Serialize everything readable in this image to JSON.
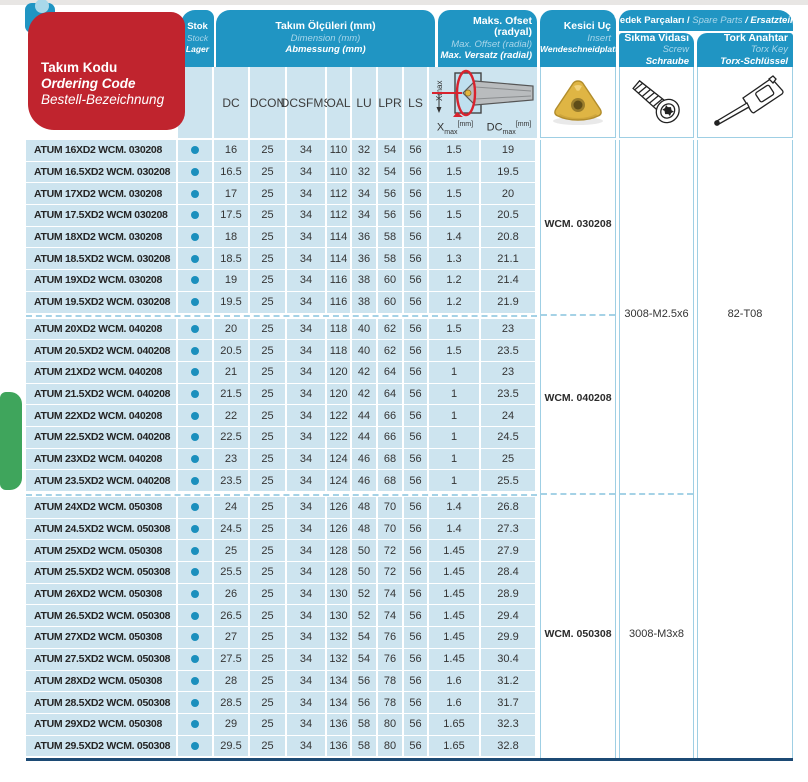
{
  "header": {
    "ordering_code": {
      "tr": "Takım Kodu",
      "en": "Ordering Code",
      "de": "Bestell-Bezeichnung"
    },
    "stock": {
      "tr": "Stok",
      "en": "Stock",
      "de": "Lager"
    },
    "dimensions": {
      "tr": "Takım Ölçüleri (mm)",
      "en": "Dimension (mm)",
      "de": "Abmessung (mm)"
    },
    "max_offset": {
      "tr": "Maks. Ofset (radyal)",
      "en": "Max. Offset (radial)",
      "de": "Max. Versatz (radial)"
    },
    "insert": {
      "tr": "Kesici Uç",
      "en": "Insert",
      "de": "Wendeschneidplatte"
    },
    "spare_parts": {
      "tr": "Yedek Parçaları /",
      "en": "Spare Parts",
      "de": "/ Ersatzteile"
    },
    "screw": {
      "tr": "Sıkma Vidası",
      "en": "Screw",
      "de": "Schraube"
    },
    "torx_key": {
      "tr": "Tork Anahtar",
      "en": "Torx Key",
      "de": "Torx-Schlüssel"
    },
    "dim_columns": [
      "DC",
      "DCON",
      "DCSFMS",
      "OAL",
      "LU",
      "LPR",
      "LS"
    ],
    "offset_x": {
      "base": "X",
      "sub": "max",
      "unit": "[mm]"
    },
    "offset_dc": {
      "base": "DC",
      "sub": "max",
      "unit": "[mm]"
    },
    "diagram_label": "Xmax"
  },
  "groups": [
    {
      "insert": "WCM. 030208"
    },
    {
      "insert": "WCM. 040208"
    },
    {
      "insert": "WCM. 050308"
    }
  ],
  "spares": {
    "screw_group12": "3008-M2.5x6",
    "screw_group3": "3008-M3x8",
    "torx_all": "82-T08"
  },
  "rows": [
    {
      "code": "ATUM 16XD2 WCM. 030208",
      "dc": "16",
      "dcon": "25",
      "dcsfms": "34",
      "oal": "110",
      "lu": "32",
      "lpr": "54",
      "ls": "56",
      "xmax": "1.5",
      "dcmax": "19"
    },
    {
      "code": "ATUM 16.5XD2 WCM. 030208",
      "dc": "16.5",
      "dcon": "25",
      "dcsfms": "34",
      "oal": "110",
      "lu": "32",
      "lpr": "54",
      "ls": "56",
      "xmax": "1.5",
      "dcmax": "19.5"
    },
    {
      "code": "ATUM 17XD2 WCM. 030208",
      "dc": "17",
      "dcon": "25",
      "dcsfms": "34",
      "oal": "112",
      "lu": "34",
      "lpr": "56",
      "ls": "56",
      "xmax": "1.5",
      "dcmax": "20"
    },
    {
      "code": "ATUM 17.5XD2 WCM 030208",
      "dc": "17.5",
      "dcon": "25",
      "dcsfms": "34",
      "oal": "112",
      "lu": "34",
      "lpr": "56",
      "ls": "56",
      "xmax": "1.5",
      "dcmax": "20.5"
    },
    {
      "code": "ATUM 18XD2 WCM. 030208",
      "dc": "18",
      "dcon": "25",
      "dcsfms": "34",
      "oal": "114",
      "lu": "36",
      "lpr": "58",
      "ls": "56",
      "xmax": "1.4",
      "dcmax": "20.8"
    },
    {
      "code": "ATUM 18.5XD2 WCM. 030208",
      "dc": "18.5",
      "dcon": "25",
      "dcsfms": "34",
      "oal": "114",
      "lu": "36",
      "lpr": "58",
      "ls": "56",
      "xmax": "1.3",
      "dcmax": "21.1"
    },
    {
      "code": "ATUM 19XD2 WCM. 030208",
      "dc": "19",
      "dcon": "25",
      "dcsfms": "34",
      "oal": "116",
      "lu": "38",
      "lpr": "60",
      "ls": "56",
      "xmax": "1.2",
      "dcmax": "21.4"
    },
    {
      "code": "ATUM 19.5XD2 WCM. 030208",
      "dc": "19.5",
      "dcon": "25",
      "dcsfms": "34",
      "oal": "116",
      "lu": "38",
      "lpr": "60",
      "ls": "56",
      "xmax": "1.2",
      "dcmax": "21.9"
    },
    {
      "code": "ATUM 20XD2 WCM. 040208",
      "dc": "20",
      "dcon": "25",
      "dcsfms": "34",
      "oal": "118",
      "lu": "40",
      "lpr": "62",
      "ls": "56",
      "xmax": "1.5",
      "dcmax": "23"
    },
    {
      "code": "ATUM 20.5XD2 WCM. 040208",
      "dc": "20.5",
      "dcon": "25",
      "dcsfms": "34",
      "oal": "118",
      "lu": "40",
      "lpr": "62",
      "ls": "56",
      "xmax": "1.5",
      "dcmax": "23.5"
    },
    {
      "code": "ATUM 21XD2 WCM. 040208",
      "dc": "21",
      "dcon": "25",
      "dcsfms": "34",
      "oal": "120",
      "lu": "42",
      "lpr": "64",
      "ls": "56",
      "xmax": "1",
      "dcmax": "23"
    },
    {
      "code": "ATUM 21.5XD2 WCM. 040208",
      "dc": "21.5",
      "dcon": "25",
      "dcsfms": "34",
      "oal": "120",
      "lu": "42",
      "lpr": "64",
      "ls": "56",
      "xmax": "1",
      "dcmax": "23.5"
    },
    {
      "code": "ATUM 22XD2 WCM. 040208",
      "dc": "22",
      "dcon": "25",
      "dcsfms": "34",
      "oal": "122",
      "lu": "44",
      "lpr": "66",
      "ls": "56",
      "xmax": "1",
      "dcmax": "24"
    },
    {
      "code": "ATUM 22.5XD2 WCM. 040208",
      "dc": "22.5",
      "dcon": "25",
      "dcsfms": "34",
      "oal": "122",
      "lu": "44",
      "lpr": "66",
      "ls": "56",
      "xmax": "1",
      "dcmax": "24.5"
    },
    {
      "code": "ATUM 23XD2 WCM. 040208",
      "dc": "23",
      "dcon": "25",
      "dcsfms": "34",
      "oal": "124",
      "lu": "46",
      "lpr": "68",
      "ls": "56",
      "xmax": "1",
      "dcmax": "25"
    },
    {
      "code": "ATUM 23.5XD2 WCM. 040208",
      "dc": "23.5",
      "dcon": "25",
      "dcsfms": "34",
      "oal": "124",
      "lu": "46",
      "lpr": "68",
      "ls": "56",
      "xmax": "1",
      "dcmax": "25.5"
    },
    {
      "code": "ATUM 24XD2 WCM. 050308",
      "dc": "24",
      "dcon": "25",
      "dcsfms": "34",
      "oal": "126",
      "lu": "48",
      "lpr": "70",
      "ls": "56",
      "xmax": "1.4",
      "dcmax": "26.8"
    },
    {
      "code": "ATUM 24.5XD2 WCM. 050308",
      "dc": "24.5",
      "dcon": "25",
      "dcsfms": "34",
      "oal": "126",
      "lu": "48",
      "lpr": "70",
      "ls": "56",
      "xmax": "1.4",
      "dcmax": "27.3"
    },
    {
      "code": "ATUM 25XD2 WCM. 050308",
      "dc": "25",
      "dcon": "25",
      "dcsfms": "34",
      "oal": "128",
      "lu": "50",
      "lpr": "72",
      "ls": "56",
      "xmax": "1.45",
      "dcmax": "27.9"
    },
    {
      "code": "ATUM 25.5XD2 WCM. 050308",
      "dc": "25.5",
      "dcon": "25",
      "dcsfms": "34",
      "oal": "128",
      "lu": "50",
      "lpr": "72",
      "ls": "56",
      "xmax": "1.45",
      "dcmax": "28.4"
    },
    {
      "code": "ATUM 26XD2 WCM. 050308",
      "dc": "26",
      "dcon": "25",
      "dcsfms": "34",
      "oal": "130",
      "lu": "52",
      "lpr": "74",
      "ls": "56",
      "xmax": "1.45",
      "dcmax": "28.9"
    },
    {
      "code": "ATUM 26.5XD2 WCM. 050308",
      "dc": "26.5",
      "dcon": "25",
      "dcsfms": "34",
      "oal": "130",
      "lu": "52",
      "lpr": "74",
      "ls": "56",
      "xmax": "1.45",
      "dcmax": "29.4"
    },
    {
      "code": "ATUM 27XD2 WCM. 050308",
      "dc": "27",
      "dcon": "25",
      "dcsfms": "34",
      "oal": "132",
      "lu": "54",
      "lpr": "76",
      "ls": "56",
      "xmax": "1.45",
      "dcmax": "29.9"
    },
    {
      "code": "ATUM 27.5XD2 WCM. 050308",
      "dc": "27.5",
      "dcon": "25",
      "dcsfms": "34",
      "oal": "132",
      "lu": "54",
      "lpr": "76",
      "ls": "56",
      "xmax": "1.45",
      "dcmax": "30.4"
    },
    {
      "code": "ATUM 28XD2 WCM. 050308",
      "dc": "28",
      "dcon": "25",
      "dcsfms": "34",
      "oal": "134",
      "lu": "56",
      "lpr": "78",
      "ls": "56",
      "xmax": "1.6",
      "dcmax": "31.2"
    },
    {
      "code": "ATUM 28.5XD2 WCM. 050308",
      "dc": "28.5",
      "dcon": "25",
      "dcsfms": "34",
      "oal": "134",
      "lu": "56",
      "lpr": "78",
      "ls": "56",
      "xmax": "1.6",
      "dcmax": "31.7"
    },
    {
      "code": "ATUM 29XD2 WCM. 050308",
      "dc": "29",
      "dcon": "25",
      "dcsfms": "34",
      "oal": "136",
      "lu": "58",
      "lpr": "80",
      "ls": "56",
      "xmax": "1.65",
      "dcmax": "32.3"
    },
    {
      "code": "ATUM 29.5XD2 WCM. 050308",
      "dc": "29.5",
      "dcon": "25",
      "dcsfms": "34",
      "oal": "136",
      "lu": "58",
      "lpr": "80",
      "ls": "56",
      "xmax": "1.65",
      "dcmax": "32.8"
    }
  ],
  "colors": {
    "teal": "#2095c3",
    "row_blue": "#cde4ef",
    "navy": "#1c4a74",
    "red": "#c0242e",
    "green": "#3fa55c",
    "dash_blue": "#a5d2e6"
  }
}
